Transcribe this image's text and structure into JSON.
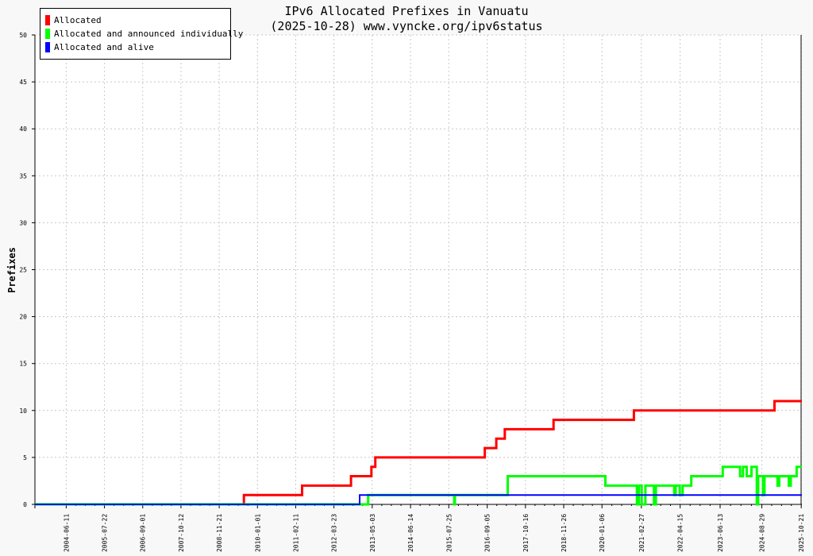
{
  "chart_data": {
    "type": "line",
    "title": "IPv6 Allocated Prefixes in Vanuatu",
    "subtitle": "(2025-10-28) www.vyncke.org/ipv6status",
    "xlabel": "",
    "ylabel": "Prefixes",
    "ylim": [
      0,
      50
    ],
    "yticks": [
      0,
      5,
      10,
      15,
      20,
      25,
      30,
      35,
      40,
      45,
      50
    ],
    "xlim": [
      "2003-07-15",
      "2025-10-28"
    ],
    "xticks": [
      "2004-06-11",
      "2005-07-22",
      "2006-09-01",
      "2007-10-12",
      "2008-11-21",
      "2010-01-01",
      "2011-02-11",
      "2012-03-23",
      "2013-05-03",
      "2014-06-14",
      "2015-07-25",
      "2016-09-05",
      "2017-10-16",
      "2018-11-26",
      "2020-01-06",
      "2021-02-27",
      "2022-04-15",
      "2023-06-13",
      "2024-08-29",
      "2025-10-21"
    ],
    "grid": true,
    "legend_position": "top-left",
    "series": [
      {
        "name": "Allocated",
        "color": "#ff0000",
        "points": [
          [
            "2003-07-15",
            0
          ],
          [
            "2009-08-10",
            1
          ],
          [
            "2011-04-20",
            2
          ],
          [
            "2012-09-20",
            3
          ],
          [
            "2013-04-25",
            4
          ],
          [
            "2013-06-05",
            5
          ],
          [
            "2016-08-10",
            6
          ],
          [
            "2016-12-10",
            7
          ],
          [
            "2017-03-10",
            8
          ],
          [
            "2018-08-10",
            9
          ],
          [
            "2020-12-10",
            10
          ],
          [
            "2025-01-10",
            11
          ],
          [
            "2025-10-28",
            11
          ]
        ]
      },
      {
        "name": "Allocated and announced individually",
        "color": "#00ff00",
        "points": [
          [
            "2003-07-15",
            0
          ],
          [
            "2013-03-20",
            0
          ],
          [
            "2013-03-21",
            1
          ],
          [
            "2015-09-20",
            1
          ],
          [
            "2015-09-21",
            0
          ],
          [
            "2015-09-27",
            1
          ],
          [
            "2017-04-10",
            1
          ],
          [
            "2017-04-11",
            3
          ],
          [
            "2020-02-10",
            3
          ],
          [
            "2020-02-11",
            2
          ],
          [
            "2021-01-10",
            2
          ],
          [
            "2021-01-11",
            0
          ],
          [
            "2021-01-30",
            0
          ],
          [
            "2021-01-31",
            2
          ],
          [
            "2021-03-01",
            2
          ],
          [
            "2021-03-02",
            0
          ],
          [
            "2021-04-10",
            0
          ],
          [
            "2021-04-11",
            2
          ],
          [
            "2021-07-10",
            2
          ],
          [
            "2021-07-11",
            0
          ],
          [
            "2021-07-30",
            0
          ],
          [
            "2021-07-31",
            2
          ],
          [
            "2022-02-10",
            2
          ],
          [
            "2022-02-11",
            1
          ],
          [
            "2022-02-25",
            1
          ],
          [
            "2022-02-26",
            2
          ],
          [
            "2022-04-10",
            2
          ],
          [
            "2022-04-11",
            1
          ],
          [
            "2022-05-10",
            1
          ],
          [
            "2022-05-11",
            2
          ],
          [
            "2022-08-10",
            2
          ],
          [
            "2022-08-11",
            3
          ],
          [
            "2023-07-10",
            3
          ],
          [
            "2023-07-11",
            4
          ],
          [
            "2024-01-10",
            4
          ],
          [
            "2024-01-11",
            3
          ],
          [
            "2024-02-10",
            3
          ],
          [
            "2024-02-11",
            4
          ],
          [
            "2024-03-20",
            4
          ],
          [
            "2024-03-21",
            3
          ],
          [
            "2024-05-10",
            3
          ],
          [
            "2024-05-11",
            4
          ],
          [
            "2024-07-05",
            4
          ],
          [
            "2024-07-06",
            0
          ],
          [
            "2024-07-20",
            0
          ],
          [
            "2024-07-21",
            3
          ],
          [
            "2024-09-10",
            3
          ],
          [
            "2024-09-11",
            1
          ],
          [
            "2024-09-25",
            1
          ],
          [
            "2024-09-26",
            3
          ],
          [
            "2025-02-10",
            3
          ],
          [
            "2025-02-11",
            2
          ],
          [
            "2025-03-01",
            2
          ],
          [
            "2025-03-02",
            3
          ],
          [
            "2025-06-10",
            3
          ],
          [
            "2025-06-11",
            2
          ],
          [
            "2025-07-01",
            2
          ],
          [
            "2025-07-02",
            3
          ],
          [
            "2025-09-01",
            3
          ],
          [
            "2025-09-02",
            4
          ],
          [
            "2025-10-28",
            4
          ]
        ]
      },
      {
        "name": "Allocated and alive",
        "color": "#0000ff",
        "points": [
          [
            "2003-07-15",
            0
          ],
          [
            "2012-12-20",
            0
          ],
          [
            "2012-12-21",
            1
          ],
          [
            "2025-10-28",
            1
          ]
        ]
      }
    ]
  }
}
